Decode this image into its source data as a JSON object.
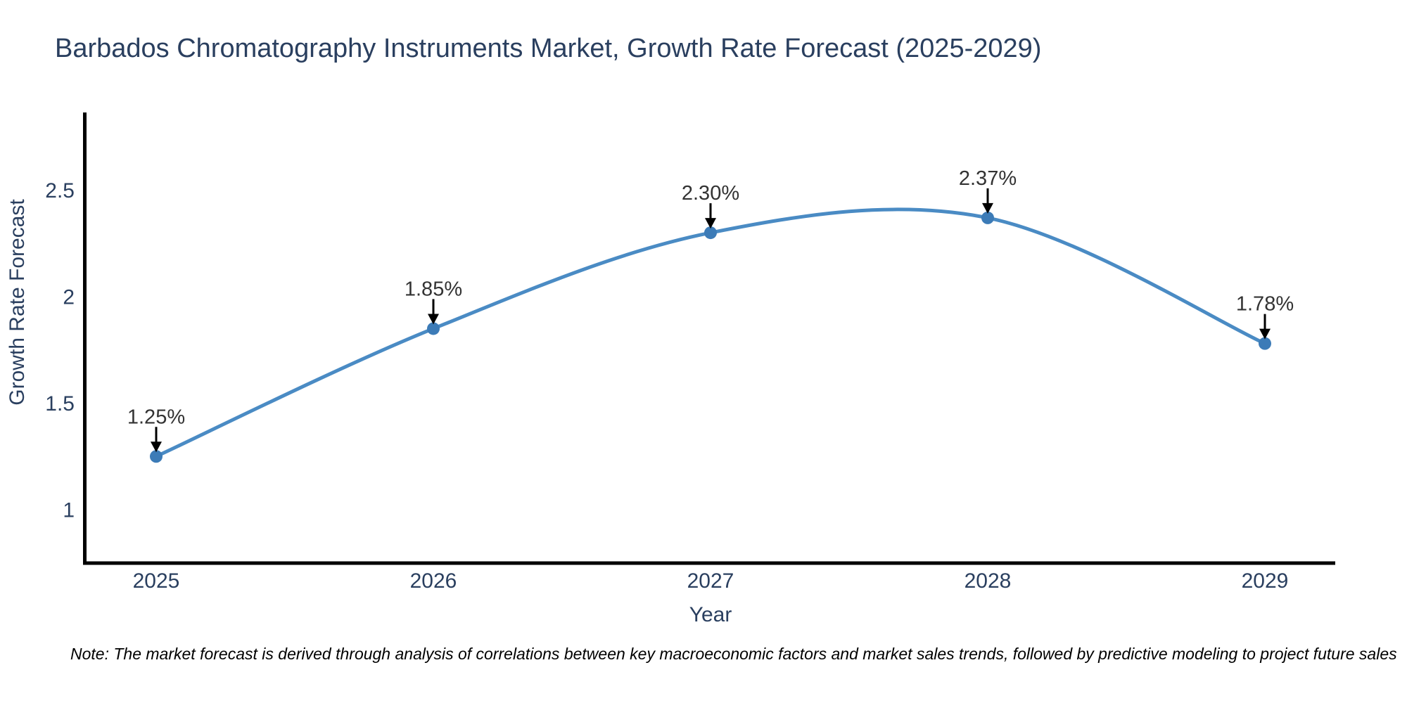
{
  "chart_data": {
    "type": "line",
    "title": "Barbados Chromatography Instruments Market, Growth Rate Forecast (2025-2029)",
    "xlabel": "Year",
    "ylabel": "Growth Rate Forecast",
    "x": [
      2025,
      2026,
      2027,
      2028,
      2029
    ],
    "series": [
      {
        "name": "Growth Rate Forecast",
        "values": [
          1.25,
          1.85,
          2.3,
          2.37,
          1.78
        ]
      }
    ],
    "data_labels": [
      "1.25%",
      "1.85%",
      "2.30%",
      "2.37%",
      "1.78%"
    ],
    "ytick_labels": [
      "1",
      "1.5",
      "2",
      "2.5"
    ],
    "ytick_values": [
      1,
      1.5,
      2,
      2.5
    ],
    "ylim": [
      0.75,
      2.86
    ],
    "curve": "spline",
    "grid": false,
    "legend_position": "none",
    "colors": {
      "line": "#4a8bc4",
      "marker": "#3c7bb7",
      "axis": "#000000",
      "arrow": "#000000",
      "text": "#2a3f5f",
      "annotation": "#333333"
    }
  },
  "footnote": "Note: The market forecast is derived through analysis of correlations between key macroeconomic factors and market sales trends, followed by predictive modeling to project future sales"
}
